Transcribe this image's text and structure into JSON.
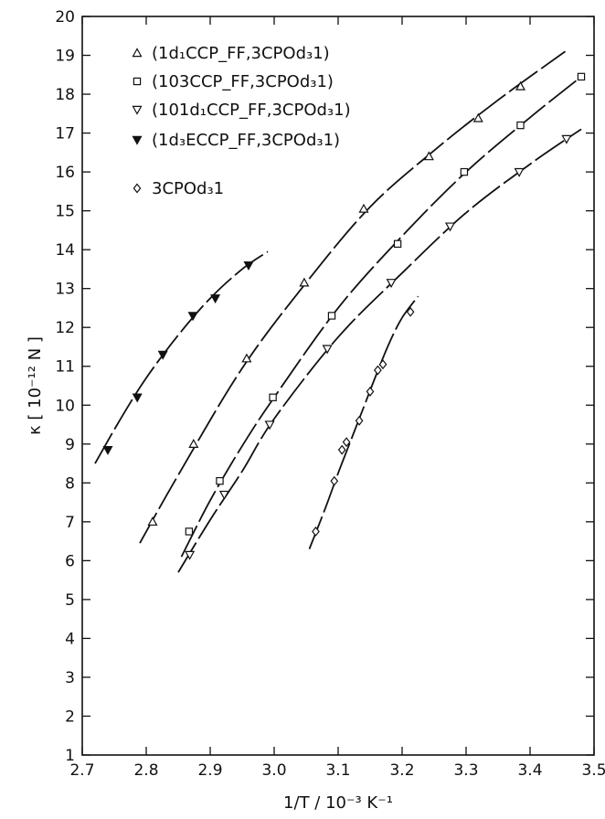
{
  "chart_data": {
    "type": "scatter",
    "title": "",
    "xlabel": "1/T / 10⁻³ K⁻¹",
    "ylabel": "κ [ 10⁻¹² N ]",
    "xlim": [
      2.7,
      3.5
    ],
    "ylim": [
      1,
      20
    ],
    "xticks": [
      "2.7",
      "2.8",
      "2.9",
      "3.0",
      "3.1",
      "3.2",
      "3.3",
      "3.4",
      "3.5"
    ],
    "yticks": [
      "1",
      "2",
      "3",
      "4",
      "5",
      "6",
      "7",
      "8",
      "9",
      "10",
      "11",
      "12",
      "13",
      "14",
      "15",
      "16",
      "17",
      "18",
      "19",
      "20"
    ],
    "grid": false,
    "legend_position": "top-left",
    "series": [
      {
        "name": "(1d₁CCP_FF,3CPOd₃1)",
        "marker": "triangle-up",
        "points": [
          [
            2.81,
            7.0
          ],
          [
            2.874,
            9.0
          ],
          [
            2.957,
            11.2
          ],
          [
            3.047,
            13.15
          ],
          [
            3.14,
            15.05
          ],
          [
            3.242,
            16.4
          ],
          [
            3.319,
            17.38
          ],
          [
            3.385,
            18.2
          ]
        ],
        "fit": [
          [
            2.79,
            6.45
          ],
          [
            2.85,
            8.2
          ],
          [
            2.95,
            10.95
          ],
          [
            3.05,
            13.15
          ],
          [
            3.15,
            15.1
          ],
          [
            3.25,
            16.55
          ],
          [
            3.35,
            17.85
          ],
          [
            3.455,
            19.1
          ]
        ]
      },
      {
        "name": "(103CCP_FF,3CPOd₃1)",
        "marker": "square",
        "points": [
          [
            2.867,
            6.75
          ],
          [
            2.915,
            8.05
          ],
          [
            2.998,
            10.2
          ],
          [
            3.09,
            12.3
          ],
          [
            3.193,
            14.15
          ],
          [
            3.297,
            16.0
          ],
          [
            3.385,
            17.2
          ],
          [
            3.48,
            18.45
          ]
        ],
        "fit": [
          [
            2.855,
            6.1
          ],
          [
            2.9,
            7.55
          ],
          [
            2.95,
            8.95
          ],
          [
            3.0,
            10.2
          ],
          [
            3.1,
            12.5
          ],
          [
            3.2,
            14.35
          ],
          [
            3.3,
            16.0
          ],
          [
            3.4,
            17.4
          ],
          [
            3.48,
            18.45
          ]
        ]
      },
      {
        "name": "(101d₁CCP_FF,3CPOd₃1)",
        "marker": "triangle-down",
        "points": [
          [
            2.868,
            6.15
          ],
          [
            2.922,
            7.7
          ],
          [
            2.993,
            9.5
          ],
          [
            3.083,
            11.45
          ],
          [
            3.183,
            13.15
          ],
          [
            3.275,
            14.6
          ],
          [
            3.383,
            16.0
          ],
          [
            3.457,
            16.85
          ]
        ],
        "fit": [
          [
            2.85,
            5.7
          ],
          [
            2.9,
            7.05
          ],
          [
            2.95,
            8.3
          ],
          [
            3.0,
            9.65
          ],
          [
            3.1,
            11.75
          ],
          [
            3.2,
            13.4
          ],
          [
            3.3,
            14.95
          ],
          [
            3.4,
            16.2
          ],
          [
            3.48,
            17.1
          ]
        ]
      },
      {
        "name": "(1d₃ECCP_FF,3CPOd₃1)",
        "marker": "triangle-down-filled",
        "points": [
          [
            2.74,
            8.85
          ],
          [
            2.786,
            10.2
          ],
          [
            2.826,
            11.3
          ],
          [
            2.873,
            12.3
          ],
          [
            2.908,
            12.75
          ],
          [
            2.96,
            13.6
          ]
        ],
        "fit": [
          [
            2.72,
            8.5
          ],
          [
            2.76,
            9.65
          ],
          [
            2.8,
            10.7
          ],
          [
            2.85,
            11.8
          ],
          [
            2.9,
            12.75
          ],
          [
            2.95,
            13.5
          ],
          [
            2.99,
            13.95
          ]
        ]
      },
      {
        "name": "3CPOd₃1",
        "marker": "diamond",
        "points": [
          [
            3.065,
            6.75
          ],
          [
            3.094,
            8.05
          ],
          [
            3.106,
            8.85
          ],
          [
            3.113,
            9.05
          ],
          [
            3.133,
            9.6
          ],
          [
            3.15,
            10.35
          ],
          [
            3.162,
            10.9
          ],
          [
            3.17,
            11.05
          ],
          [
            3.213,
            12.4
          ]
        ],
        "fit": [
          [
            3.055,
            6.3
          ],
          [
            3.08,
            7.35
          ],
          [
            3.1,
            8.25
          ],
          [
            3.12,
            9.1
          ],
          [
            3.14,
            9.95
          ],
          [
            3.16,
            10.8
          ],
          [
            3.18,
            11.6
          ],
          [
            3.2,
            12.25
          ],
          [
            3.225,
            12.8
          ]
        ]
      }
    ]
  }
}
